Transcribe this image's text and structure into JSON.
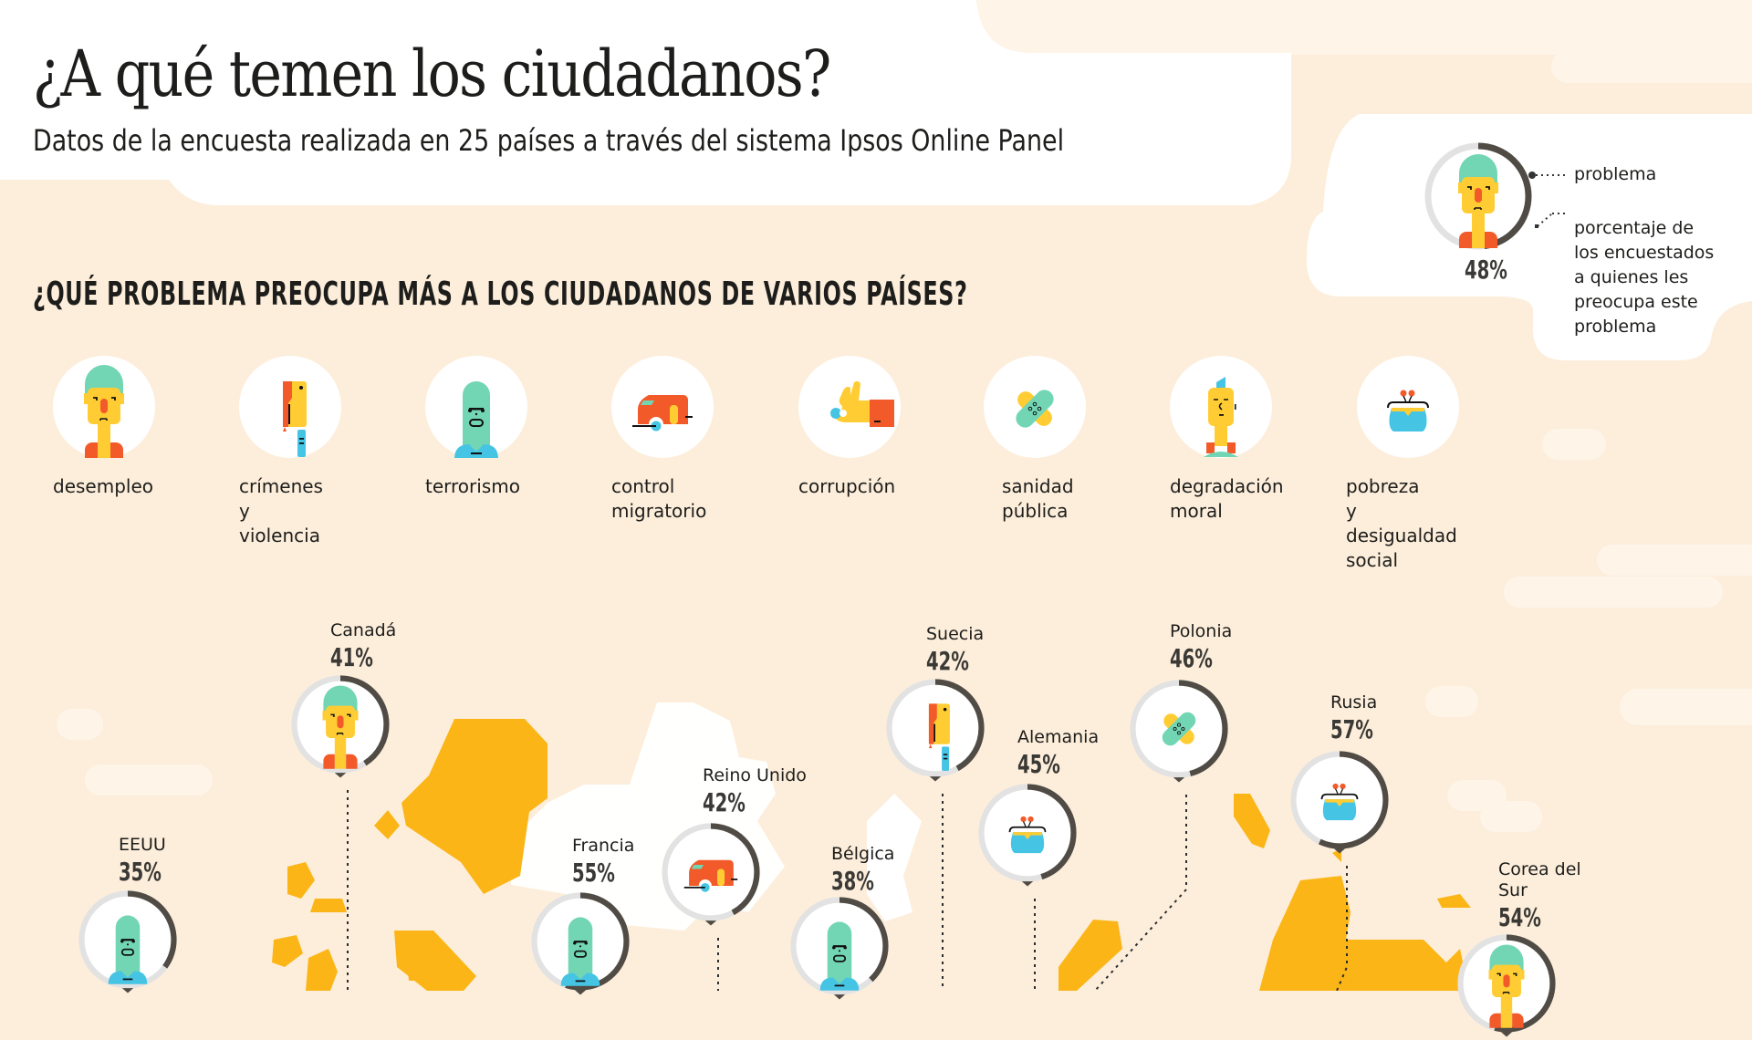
{
  "header": {
    "title": "¿A qué temen los ciudadanos?",
    "subtitle": "Datos de la encuesta realizada en 25 países a través del sistema Ipsos Online Panel"
  },
  "legend": {
    "icon": "unemployed-man-icon",
    "percent": 0.48,
    "percent_label": "48%",
    "problem_label": "problema",
    "percent_description": "porcentaje de\nlos encuestados\na quienes les\npreocupa este\nproblema"
  },
  "section": {
    "heading": "¿QUÉ PROBLEMA PREOCUPA MÁS A LOS CIUDADANOS DE VARIOS PAÍSES?"
  },
  "categories": [
    {
      "key": "desempleo",
      "label": "desempleo",
      "icon": "unemployed-man-icon"
    },
    {
      "key": "crimenes",
      "label": "crímenes y\nviolencia",
      "icon": "cleaver-knife-icon"
    },
    {
      "key": "terrorismo",
      "label": "terrorismo",
      "icon": "masked-terrorist-icon"
    },
    {
      "key": "migracion",
      "label": "control\nmigratorio",
      "icon": "caravan-trailer-icon"
    },
    {
      "key": "corrupcion",
      "label": "corrupción",
      "icon": "ok-hand-bribe-icon"
    },
    {
      "key": "sanidad",
      "label": "sanidad\npública",
      "icon": "bandage-plaster-icon"
    },
    {
      "key": "moral",
      "label": "degradación\nmoral",
      "icon": "mohawk-man-icon"
    },
    {
      "key": "pobreza",
      "label": "pobreza\ny desigualdad\nsocial",
      "icon": "coin-purse-icon"
    }
  ],
  "countries": [
    {
      "name": "Canadá",
      "percent_label": "41%",
      "percent": 0.41,
      "problem": "desempleo"
    },
    {
      "name": "EEUU",
      "percent_label": "35%",
      "percent": 0.35,
      "problem": "terrorismo"
    },
    {
      "name": "Francia",
      "percent_label": "55%",
      "percent": 0.55,
      "problem": "terrorismo"
    },
    {
      "name": "Reino Unido",
      "percent_label": "42%",
      "percent": 0.42,
      "problem": "migracion"
    },
    {
      "name": "Bélgica",
      "percent_label": "38%",
      "percent": 0.38,
      "problem": "terrorismo"
    },
    {
      "name": "Suecia",
      "percent_label": "42%",
      "percent": 0.42,
      "problem": "crimenes"
    },
    {
      "name": "Alemania",
      "percent_label": "45%",
      "percent": 0.45,
      "problem": "pobreza"
    },
    {
      "name": "Polonia",
      "percent_label": "46%",
      "percent": 0.46,
      "problem": "sanidad"
    },
    {
      "name": "Rusia",
      "percent_label": "57%",
      "percent": 0.57,
      "problem": "pobreza"
    },
    {
      "name": "Corea del\nSur",
      "percent_label": "54%",
      "percent": 0.54,
      "problem": "desempleo"
    }
  ],
  "colors": {
    "background": "#fdeedb",
    "map_yellow": "#fbb516",
    "ring_track": "#e2e2e2",
    "ring_fill": "#504c45",
    "teal": "#72d6b4",
    "skin": "#ffcd33",
    "orange": "#f25a29",
    "blue": "#46c4e4"
  }
}
